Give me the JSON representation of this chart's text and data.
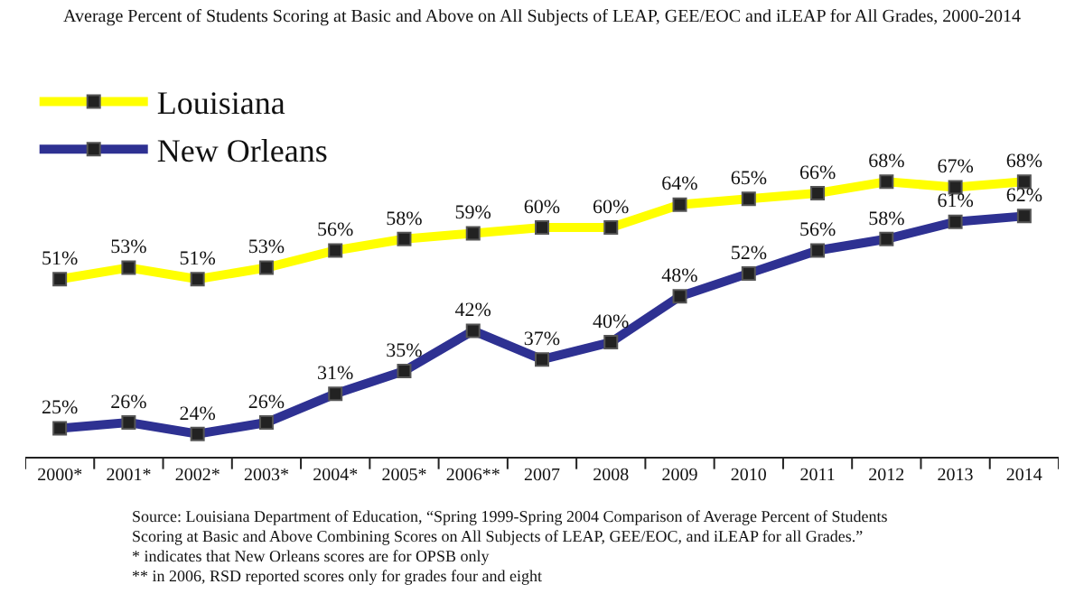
{
  "chart_data": {
    "type": "line",
    "title": "Average Percent of Students Scoring at Basic and Above on All Subjects of LEAP, GEE/EOC and iLEAP for All Grades, 2000-2014",
    "categories": [
      "2000*",
      "2001*",
      "2002*",
      "2003*",
      "2004*",
      "2005*",
      "2006**",
      "2007",
      "2008",
      "2009",
      "2010",
      "2011",
      "2012",
      "2013",
      "2014"
    ],
    "series": [
      {
        "name": "Louisiana",
        "color": "#ffff00",
        "values": [
          51,
          53,
          51,
          53,
          56,
          58,
          59,
          60,
          60,
          64,
          65,
          66,
          68,
          67,
          68
        ],
        "value_labels": [
          "51%",
          "53%",
          "51%",
          "53%",
          "56%",
          "58%",
          "59%",
          "60%",
          "60%",
          "64%",
          "65%",
          "66%",
          "68%",
          "67%",
          "68%"
        ]
      },
      {
        "name": "New Orleans",
        "color": "#2e3192",
        "values": [
          25,
          26,
          24,
          26,
          31,
          35,
          42,
          37,
          40,
          48,
          52,
          56,
          58,
          61,
          62
        ],
        "value_labels": [
          "25%",
          "26%",
          "24%",
          "26%",
          "31%",
          "35%",
          "42%",
          "37%",
          "40%",
          "48%",
          "52%",
          "56%",
          "58%",
          "61%",
          "62%"
        ]
      }
    ],
    "tick_labels": "x",
    "grid": false,
    "legend": "top left",
    "marker": "square",
    "annotations": [
      "Source: Louisiana Department of Education, “Spring 1999-Spring 2004 Comparison of Average Percent of Students Scoring at Basic and Above Combining Scores on All Subjects of LEAP, GEE/EOC, and iLEAP for all Grades.”",
      "* indicates that New Orleans scores are for OPSB only",
      "** in 2006, RSD reported scores only for grades four and eight"
    ]
  }
}
